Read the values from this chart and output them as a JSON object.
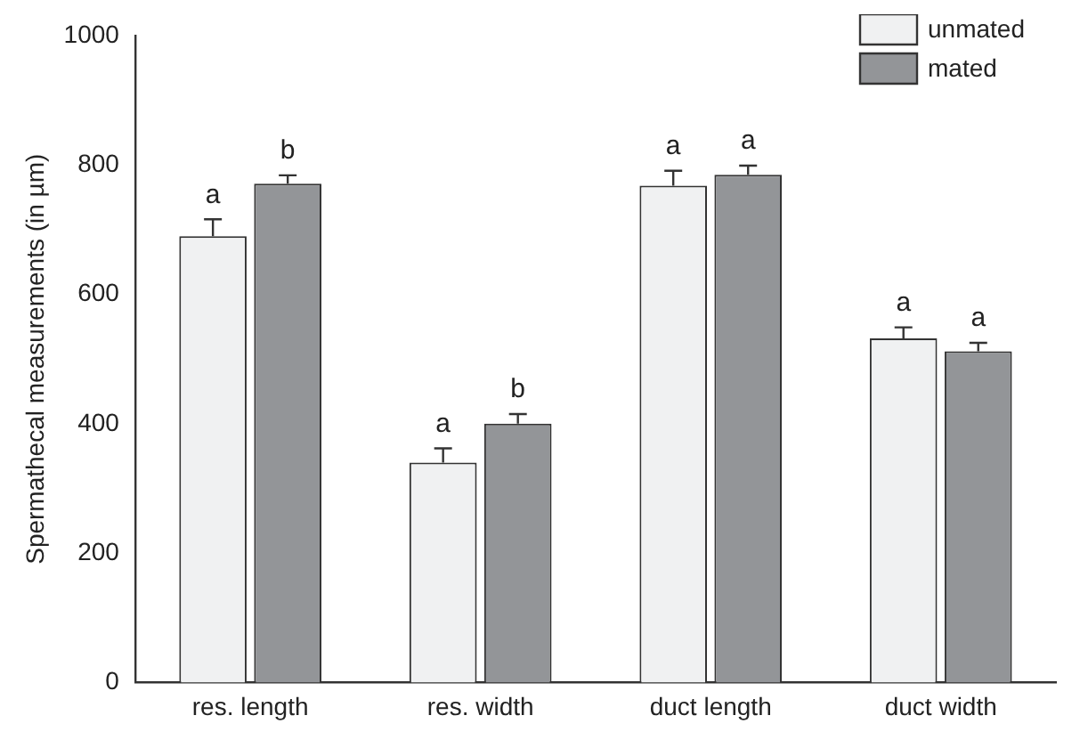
{
  "chart_data": {
    "type": "bar",
    "ylabel": "Spermathecal measurements (in µm)",
    "categories": [
      "res. length",
      "res. width",
      "duct length",
      "duct width"
    ],
    "series": [
      {
        "name": "unmated",
        "color": "#f0f1f2",
        "values": [
          690,
          340,
          768,
          532
        ],
        "errors": [
          26,
          22,
          23,
          17
        ]
      },
      {
        "name": "mated",
        "color": "#939598",
        "values": [
          771,
          400,
          785,
          512
        ],
        "errors": [
          13,
          15,
          14,
          13
        ]
      }
    ],
    "ylim": [
      0,
      1000
    ],
    "yticks": [
      0,
      200,
      400,
      600,
      800,
      1000
    ],
    "grid": false,
    "legend": "top right",
    "annotations": [
      "a",
      "b",
      "a",
      "b",
      "a",
      "a",
      "a",
      "a"
    ]
  }
}
